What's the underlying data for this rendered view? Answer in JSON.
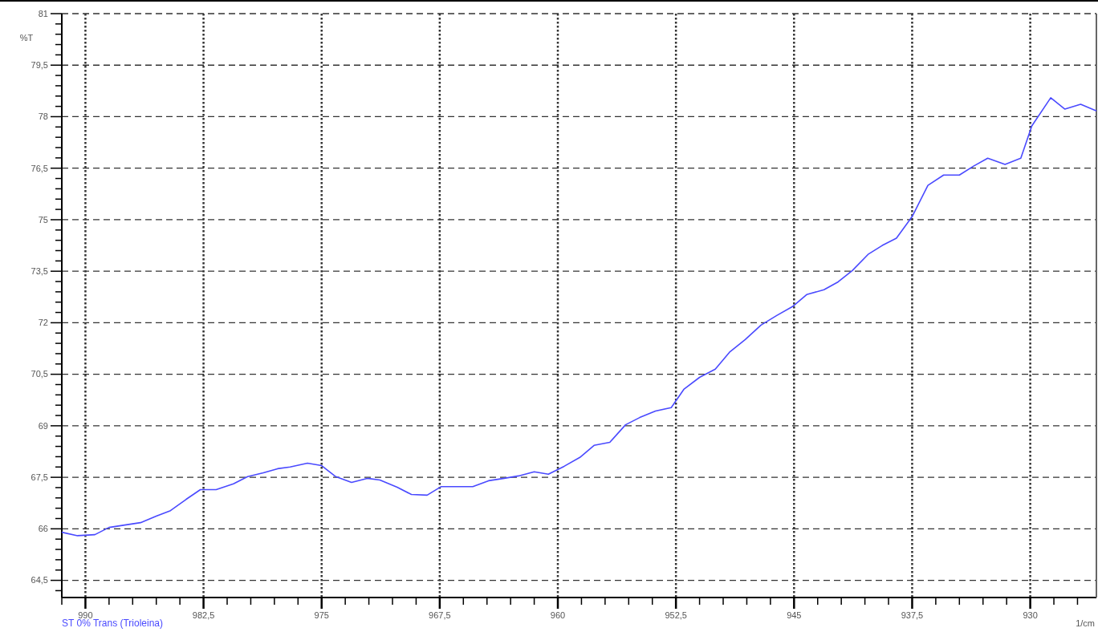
{
  "chart_data": {
    "type": "line",
    "ylabel": "%T",
    "xlabel": "1/cm",
    "xlim": [
      991.5,
      925.8
    ],
    "ylim": [
      64,
      81
    ],
    "xticks": [
      {
        "value": 991.5,
        "label": null
      },
      990,
      {
        "value": 988.5,
        "label": null
      },
      {
        "value": 987,
        "label": null
      },
      {
        "value": 985.5,
        "label": null
      },
      {
        "value": 984,
        "label": null
      },
      {
        "value": 982.5,
        "label": "982,5"
      },
      {
        "value": 981,
        "label": null
      },
      {
        "value": 979.5,
        "label": null
      },
      {
        "value": 978,
        "label": null
      },
      {
        "value": 976.5,
        "label": null
      },
      975,
      {
        "value": 973.5,
        "label": null
      },
      {
        "value": 972,
        "label": null
      },
      {
        "value": 970.5,
        "label": null
      },
      {
        "value": 969,
        "label": null
      },
      {
        "value": 967.5,
        "label": "967,5"
      },
      {
        "value": 966,
        "label": null
      },
      {
        "value": 964.5,
        "label": null
      },
      {
        "value": 963,
        "label": null
      },
      {
        "value": 961.5,
        "label": null
      },
      960,
      {
        "value": 958.5,
        "label": null
      },
      {
        "value": 957,
        "label": null
      },
      {
        "value": 955.5,
        "label": null
      },
      {
        "value": 954,
        "label": null
      },
      {
        "value": 952.5,
        "label": "952,5"
      },
      {
        "value": 951,
        "label": null
      },
      {
        "value": 949.5,
        "label": null
      },
      {
        "value": 948,
        "label": null
      },
      {
        "value": 946.5,
        "label": null
      },
      945,
      {
        "value": 943.5,
        "label": null
      },
      {
        "value": 942,
        "label": null
      },
      {
        "value": 940.5,
        "label": null
      },
      {
        "value": 939,
        "label": null
      },
      {
        "value": 937.5,
        "label": "937,5"
      },
      {
        "value": 936,
        "label": null
      },
      {
        "value": 934.5,
        "label": null
      },
      {
        "value": 933,
        "label": null
      },
      {
        "value": 931.5,
        "label": null
      },
      930,
      {
        "value": 928.5,
        "label": null
      },
      {
        "value": 927,
        "label": null
      }
    ],
    "yticks": [
      {
        "value": 64.2,
        "label": null
      },
      {
        "value": 64.5,
        "label": "64,5"
      },
      {
        "value": 64.8,
        "label": null
      },
      {
        "value": 65.1,
        "label": null
      },
      {
        "value": 65.4,
        "label": null
      },
      {
        "value": 65.7,
        "label": null
      },
      66,
      {
        "value": 66.3,
        "label": null
      },
      {
        "value": 66.6,
        "label": null
      },
      {
        "value": 66.9,
        "label": null
      },
      {
        "value": 67.2,
        "label": null
      },
      {
        "value": 67.5,
        "label": "67,5"
      },
      {
        "value": 67.8,
        "label": null
      },
      {
        "value": 68.1,
        "label": null
      },
      {
        "value": 68.4,
        "label": null
      },
      {
        "value": 68.7,
        "label": null
      },
      69,
      {
        "value": 69.3,
        "label": null
      },
      {
        "value": 69.6,
        "label": null
      },
      {
        "value": 69.9,
        "label": null
      },
      {
        "value": 70.2,
        "label": null
      },
      {
        "value": 70.5,
        "label": "70,5"
      },
      {
        "value": 70.8,
        "label": null
      },
      {
        "value": 71.1,
        "label": null
      },
      {
        "value": 71.4,
        "label": null
      },
      {
        "value": 71.7,
        "label": null
      },
      72,
      {
        "value": 72.3,
        "label": null
      },
      {
        "value": 72.6,
        "label": null
      },
      {
        "value": 72.9,
        "label": null
      },
      {
        "value": 73.2,
        "label": null
      },
      {
        "value": 73.5,
        "label": "73,5"
      },
      {
        "value": 73.8,
        "label": null
      },
      {
        "value": 74.1,
        "label": null
      },
      {
        "value": 74.4,
        "label": null
      },
      {
        "value": 74.7,
        "label": null
      },
      75,
      {
        "value": 75.3,
        "label": null
      },
      {
        "value": 75.6,
        "label": null
      },
      {
        "value": 75.9,
        "label": null
      },
      {
        "value": 76.2,
        "label": null
      },
      {
        "value": 76.5,
        "label": "76,5"
      },
      {
        "value": 76.8,
        "label": null
      },
      {
        "value": 77.1,
        "label": null
      },
      {
        "value": 77.4,
        "label": null
      },
      {
        "value": 77.7,
        "label": null
      },
      78,
      {
        "value": 78.3,
        "label": null
      },
      {
        "value": 78.6,
        "label": null
      },
      {
        "value": 78.9,
        "label": null
      },
      {
        "value": 79.2,
        "label": null
      },
      {
        "value": 79.5,
        "label": "79,5"
      },
      {
        "value": 79.8,
        "label": null
      },
      {
        "value": 80.1,
        "label": null
      },
      {
        "value": 80.4,
        "label": null
      },
      {
        "value": 80.7,
        "label": null
      },
      81
    ],
    "grid": true,
    "legend": "bottom left",
    "series": [
      {
        "name": "ST 0% Trans (Trioleina)",
        "color": "#4a4aff",
        "x": [
          991.5,
          990.5,
          989.4,
          988.5,
          987.5,
          986.5,
          985.5,
          984.6,
          983.6,
          982.7,
          981.7,
          980.6,
          979.7,
          978.7,
          977.8,
          977.0,
          975.9,
          975.0,
          974.1,
          973.1,
          972.1,
          971.3,
          970.2,
          969.3,
          968.3,
          967.4,
          966.4,
          965.4,
          964.4,
          963.4,
          962.5,
          961.5,
          960.6,
          959.6,
          958.6,
          957.7,
          956.7,
          955.7,
          954.8,
          953.8,
          952.8,
          952.0,
          951.0,
          950.0,
          949.1,
          948.1,
          947.1,
          946.1,
          945.1,
          944.2,
          943.1,
          942.2,
          941.3,
          940.3,
          939.4,
          938.5,
          937.5,
          936.5,
          935.5,
          934.5,
          933.6,
          932.7,
          931.6,
          930.6,
          929.9,
          928.7,
          927.8,
          926.8,
          925.8
        ],
        "values": [
          65.9,
          65.8,
          65.83,
          66.04,
          66.11,
          66.18,
          66.37,
          66.53,
          66.86,
          67.14,
          67.14,
          67.31,
          67.52,
          67.63,
          67.75,
          67.8,
          67.91,
          67.84,
          67.52,
          67.35,
          67.47,
          67.42,
          67.21,
          67.0,
          66.98,
          67.23,
          67.23,
          67.23,
          67.4,
          67.47,
          67.54,
          67.66,
          67.59,
          67.82,
          68.08,
          68.43,
          68.52,
          69.03,
          69.24,
          69.43,
          69.53,
          70.06,
          70.41,
          70.65,
          71.14,
          71.51,
          71.93,
          72.21,
          72.47,
          72.82,
          72.96,
          73.19,
          73.52,
          73.99,
          74.25,
          74.46,
          75.09,
          76.0,
          76.3,
          76.3,
          76.56,
          76.79,
          76.61,
          76.79,
          77.73,
          78.55,
          78.22,
          78.36,
          78.17
        ]
      }
    ]
  }
}
